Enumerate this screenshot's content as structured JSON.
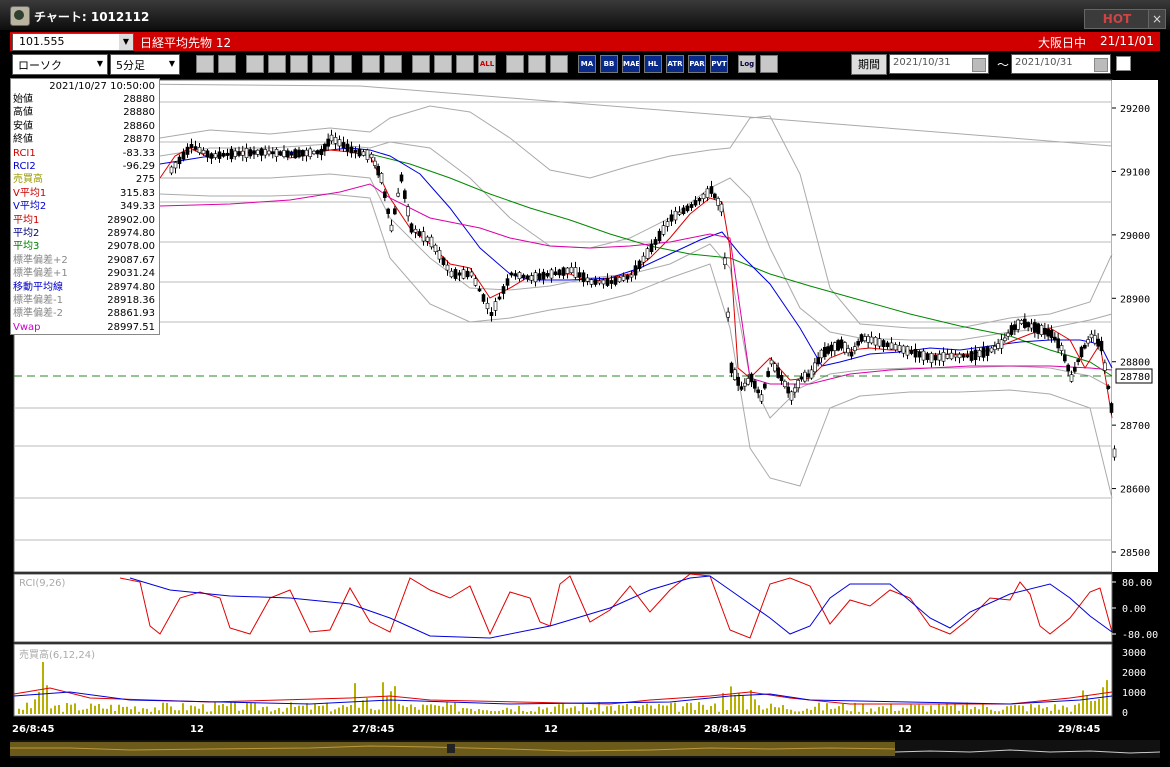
{
  "window": {
    "title": "チャート: 1012112",
    "hot_label": "HOT",
    "close_label": "×"
  },
  "infobar": {
    "code": "101.555",
    "instrument": "日経平均先物 12",
    "session": "大阪日中",
    "date": "21/11/01"
  },
  "toolbar": {
    "chart_type": "ローソク",
    "interval": "5分足",
    "buttons": [
      "zoom",
      "cursor",
      "down",
      "search",
      "price-lines",
      "trend",
      "eraser",
      "pen",
      "arrow",
      "move",
      "candle-a",
      "candle-b",
      "ALL",
      "pattern",
      "tools",
      "colors",
      "MA",
      "BB",
      "MAE",
      "HL",
      "ATR",
      "PAR",
      "PVT",
      "Log",
      "export"
    ],
    "period_label": "期間",
    "date_from": "2021/10/31",
    "date_to": "2021/10/31",
    "tilde": "〜"
  },
  "datawindow": {
    "datetime": "2021/10/27  10:50:00",
    "rows": [
      {
        "label": "始値",
        "value": "28880",
        "color": "#000000"
      },
      {
        "label": "高値",
        "value": "28880",
        "color": "#000000"
      },
      {
        "label": "安値",
        "value": "28860",
        "color": "#000000"
      },
      {
        "label": "終値",
        "value": "28870",
        "color": "#000000"
      },
      {
        "label": "RCI1",
        "value": "-83.33",
        "color": "#cc0000"
      },
      {
        "label": "RCI2",
        "value": "-96.29",
        "color": "#0000cc"
      },
      {
        "label": "売買高",
        "value": "275",
        "color": "#999900"
      },
      {
        "label": "V平均1",
        "value": "315.83",
        "color": "#cc0000"
      },
      {
        "label": "V平均2",
        "value": "349.33",
        "color": "#0000cc"
      },
      {
        "label": "平均1",
        "value": "28902.00",
        "color": "#cc0000"
      },
      {
        "label": "平均2",
        "value": "28974.80",
        "color": "#000080"
      },
      {
        "label": "平均3",
        "value": "29078.00",
        "color": "#008000"
      },
      {
        "label": "標準偏差+2",
        "value": "29087.67",
        "color": "#888888"
      },
      {
        "label": "標準偏差+1",
        "value": "29031.24",
        "color": "#888888"
      },
      {
        "label": "移動平均線",
        "value": "28974.80",
        "color": "#0000cc"
      },
      {
        "label": "標準偏差-1",
        "value": "28918.36",
        "color": "#888888"
      },
      {
        "label": "標準偏差-2",
        "value": "28861.93",
        "color": "#888888"
      },
      {
        "label": "Vwap",
        "value": "28997.51",
        "color": "#cc00cc"
      }
    ]
  },
  "price_axis": {
    "ticks": [
      "29200",
      "29100",
      "29000",
      "28900",
      "28800",
      "28700",
      "28600",
      "28500"
    ],
    "current_price": "28780",
    "ymin": 28500,
    "ymax": 29200
  },
  "rci_panel": {
    "label": "RCI(9,26)",
    "ticks": [
      "80.00",
      "0.00",
      "-80.00"
    ]
  },
  "volume_panel": {
    "label": "売買高(6,12,24)",
    "ticks": [
      "3000",
      "2000",
      "1000",
      "0"
    ]
  },
  "time_axis": {
    "labels": [
      "26/8:45",
      "12",
      "27/8:45",
      "12",
      "28/8:45",
      "12",
      "29/8:45"
    ]
  },
  "colors": {
    "ma1": "#e00000",
    "ma2": "#0000dd",
    "ma3": "#008800",
    "vwap": "#dd00aa",
    "band": "#a0a0a0",
    "candle_up": "#ffffff",
    "candle_down": "#000000",
    "volume": "#b8b000"
  }
}
